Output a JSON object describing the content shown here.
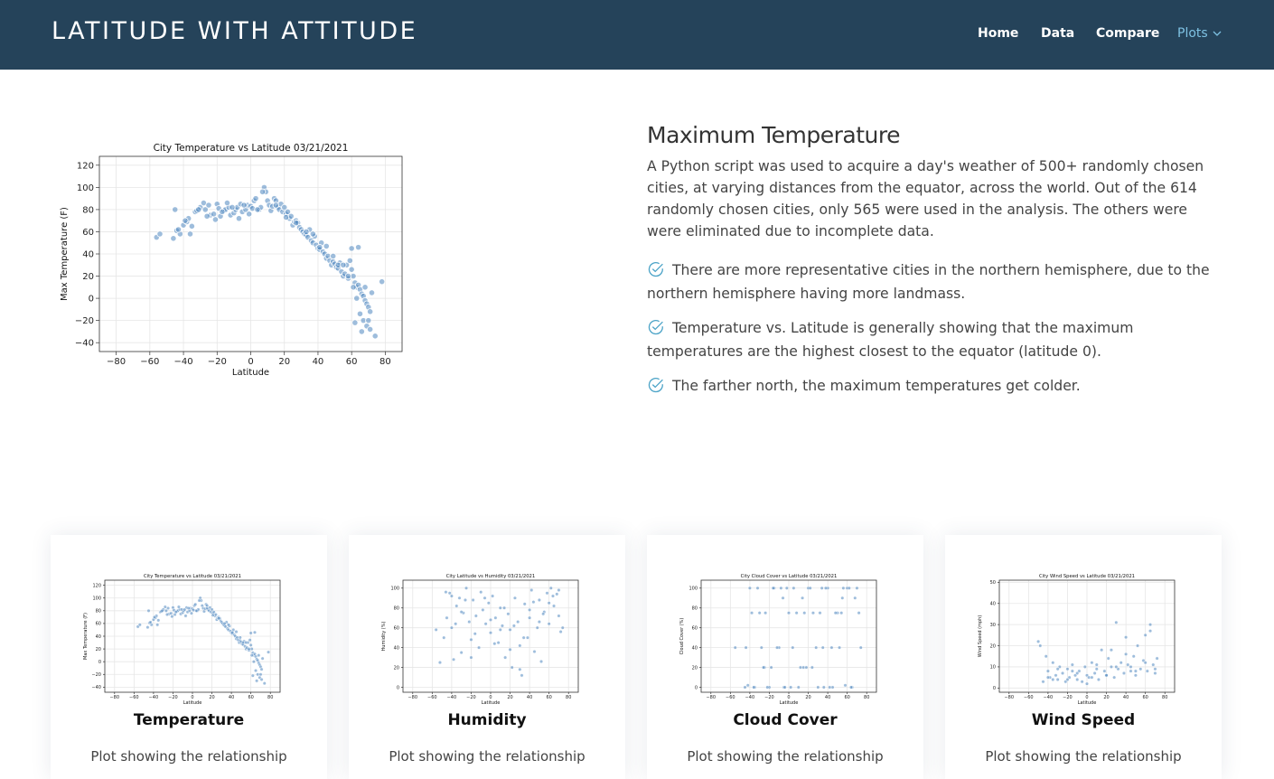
{
  "navbar": {
    "brand": "LATITUDE WITH ATTITUDE",
    "items": [
      "Home",
      "Data",
      "Compare",
      "Plots"
    ],
    "active": "Plots",
    "colors": {
      "background": "#25435a",
      "active": "#7ec2e3"
    }
  },
  "detail": {
    "title": "Maximum Temperature",
    "description": "A Python script was used to acquire a day's weather of 500+ randomly chosen cities, at varying distances from the equator, across the world. Out of the 614 randomly chosen cities, only 565 were used in the analysis. The others were were eliminated due to incomplete data.",
    "bullets": [
      "There are more representative cities in the northern hemisphere, due to the northern hemisphere having more landmass.",
      "Temperature vs. Latitude is generally showing that the maximum temperatures are the highest closest to the equator (latitude 0).",
      "The farther north, the maximum temperatures get colder."
    ],
    "bullet_icon": "check-circle-icon"
  },
  "cards": [
    {
      "title": "Temperature",
      "text": "Plot showing the relationship"
    },
    {
      "title": "Humidity",
      "text": "Plot showing the relationship"
    },
    {
      "title": "Cloud Cover",
      "text": "Plot showing the relationship"
    },
    {
      "title": "Wind Speed",
      "text": "Plot showing the relationship"
    }
  ],
  "chart_data": [
    {
      "type": "scatter",
      "title": "City Temperature vs Latitude 03/21/2021",
      "xlabel": "Latitude",
      "ylabel": "Max Temperature (F)",
      "xlim": [
        -90,
        90
      ],
      "ylim": [
        -48,
        128
      ],
      "xticks": [
        -80,
        -60,
        -40,
        -20,
        0,
        20,
        40,
        60,
        80
      ],
      "yticks": [
        120,
        100,
        80,
        60,
        40,
        20,
        0,
        -20,
        -40
      ],
      "grid": true,
      "color": "#4f86c0",
      "x": [
        -56,
        -54,
        -46,
        -45,
        -44,
        -42,
        -40,
        -38,
        -37,
        -35,
        -33,
        -32,
        -30,
        -28,
        -27,
        -25,
        -24,
        -22,
        -20,
        -19,
        -18,
        -16,
        -15,
        -13,
        -12,
        -10,
        -9,
        -8,
        -6,
        -5,
        -3,
        -2,
        0,
        1,
        2,
        3,
        5,
        6,
        8,
        9,
        10,
        11,
        12,
        13,
        14,
        15,
        16,
        17,
        18,
        19,
        20,
        21,
        22,
        23,
        24,
        25,
        26,
        27,
        28,
        29,
        30,
        31,
        32,
        33,
        34,
        35,
        36,
        37,
        38,
        39,
        40,
        41,
        42,
        43,
        44,
        45,
        46,
        47,
        48,
        49,
        50,
        51,
        52,
        53,
        54,
        55,
        56,
        57,
        58,
        59,
        60,
        61,
        62,
        63,
        64,
        65,
        66,
        67,
        68,
        69,
        70,
        71,
        72,
        78,
        -43,
        -39,
        -36,
        -31,
        -26,
        -21,
        -17,
        -14,
        -11,
        -7,
        -4,
        -1,
        4,
        7,
        15,
        21,
        27,
        33,
        37,
        41,
        45,
        49,
        52,
        55,
        58,
        61,
        63,
        65,
        67,
        69,
        71,
        74,
        60,
        62,
        64,
        66,
        68,
        70
      ],
      "y": [
        55,
        58,
        54,
        80,
        61,
        58,
        66,
        69,
        72,
        65,
        78,
        79,
        82,
        86,
        80,
        84,
        75,
        76,
        85,
        81,
        74,
        79,
        80,
        82,
        75,
        77,
        80,
        82,
        85,
        78,
        80,
        84,
        83,
        81,
        88,
        90,
        80,
        82,
        100,
        96,
        88,
        84,
        79,
        83,
        90,
        88,
        82,
        80,
        85,
        78,
        82,
        76,
        78,
        72,
        74,
        66,
        69,
        70,
        68,
        64,
        62,
        60,
        58,
        57,
        55,
        62,
        52,
        50,
        56,
        48,
        45,
        44,
        50,
        42,
        40,
        36,
        38,
        34,
        30,
        33,
        31,
        28,
        27,
        32,
        24,
        20,
        22,
        30,
        18,
        34,
        26,
        20,
        14,
        10,
        12,
        8,
        4,
        2,
        -2,
        -5,
        -8,
        -12,
        5,
        15,
        62,
        70,
        58,
        80,
        74,
        71,
        78,
        86,
        82,
        72,
        84,
        76,
        80,
        96,
        84,
        73,
        68,
        60,
        58,
        46,
        47,
        38,
        30,
        30,
        20,
        10,
        0,
        -14,
        -20,
        -25,
        -28,
        -34,
        45,
        -22,
        46,
        -30,
        10,
        -20
      ]
    },
    {
      "type": "scatter",
      "title": "City Latitude vs Humidity 03/21/2021",
      "xlabel": "Latitude",
      "ylabel": "Humidity (%)",
      "xlim": [
        -90,
        90
      ],
      "ylim": [
        -5,
        108
      ],
      "xticks": [
        -80,
        -60,
        -40,
        -20,
        0,
        20,
        40,
        60,
        80
      ],
      "yticks": [
        100,
        80,
        60,
        40,
        20,
        0
      ],
      "grid": true,
      "color": "#4f86c0",
      "x": [
        -56,
        -52,
        -48,
        -45,
        -42,
        -40,
        -38,
        -35,
        -32,
        -30,
        -28,
        -25,
        -22,
        -20,
        -18,
        -15,
        -12,
        -10,
        -8,
        -5,
        -2,
        0,
        2,
        5,
        8,
        10,
        12,
        15,
        18,
        20,
        22,
        25,
        28,
        30,
        32,
        35,
        38,
        40,
        42,
        45,
        48,
        50,
        52,
        55,
        58,
        60,
        62,
        65,
        68,
        70,
        72,
        -46,
        -36,
        -26,
        -16,
        -6,
        4,
        14,
        24,
        34,
        44,
        54,
        64,
        74,
        -40,
        -20,
        0,
        20,
        40,
        60,
        -30,
        10,
        30,
        50,
        70
      ],
      "y": [
        58,
        25,
        50,
        70,
        95,
        60,
        28,
        82,
        90,
        35,
        75,
        100,
        66,
        48,
        88,
        72,
        40,
        96,
        78,
        64,
        85,
        55,
        92,
        70,
        45,
        80,
        62,
        30,
        74,
        58,
        20,
        90,
        66,
        42,
        12,
        84,
        50,
        70,
        98,
        36,
        60,
        88,
        26,
        76,
        95,
        64,
        100,
        82,
        94,
        72,
        56,
        96,
        64,
        88,
        54,
        90,
        44,
        80,
        62,
        50,
        86,
        74,
        92,
        60,
        92,
        30,
        68,
        38,
        78,
        85,
        76,
        58,
        18,
        66,
        98
      ]
    },
    {
      "type": "scatter",
      "title": "City Cloud Cover vs Latitude 03/21/2021",
      "xlabel": "Latitude",
      "ylabel": "Cloud Cover (%)",
      "xlim": [
        -90,
        90
      ],
      "ylim": [
        -5,
        108
      ],
      "xticks": [
        -80,
        -60,
        -40,
        -20,
        0,
        20,
        40,
        60,
        80
      ],
      "yticks": [
        100,
        80,
        60,
        40,
        20,
        0
      ],
      "grid": true,
      "color": "#4f86c0",
      "x": [
        -55,
        -45,
        -40,
        -35,
        -30,
        -25,
        -20,
        -15,
        -10,
        -5,
        0,
        5,
        10,
        15,
        20,
        25,
        30,
        35,
        40,
        45,
        50,
        55,
        60,
        65,
        70,
        -42,
        -32,
        -22,
        -12,
        -2,
        8,
        18,
        28,
        38,
        48,
        58,
        68,
        -38,
        -28,
        -18,
        -8,
        2,
        12,
        22,
        32,
        42,
        52,
        62,
        72,
        -44,
        -24,
        -4,
        16,
        36,
        56,
        -36,
        -16,
        4,
        24,
        44,
        64,
        -26,
        -6,
        14,
        34,
        54,
        74
      ],
      "y": [
        40,
        0,
        100,
        0,
        75,
        20,
        0,
        100,
        40,
        0,
        75,
        100,
        0,
        20,
        100,
        75,
        0,
        40,
        100,
        0,
        75,
        90,
        100,
        0,
        100,
        2,
        100,
        0,
        40,
        100,
        75,
        20,
        40,
        100,
        75,
        2,
        90,
        75,
        40,
        20,
        100,
        0,
        20,
        100,
        75,
        0,
        40,
        100,
        75,
        40,
        75,
        0,
        75,
        0,
        100,
        0,
        100,
        40,
        20,
        40,
        0,
        20,
        90,
        90,
        100,
        75,
        40
      ]
    },
    {
      "type": "scatter",
      "title": "City Wind Speed vs Latitude 03/21/2021",
      "xlabel": "Latitude",
      "ylabel": "Wind Speed (mph)",
      "xlim": [
        -90,
        90
      ],
      "ylim": [
        -2,
        51
      ],
      "xticks": [
        -80,
        -60,
        -40,
        -20,
        0,
        20,
        40,
        60,
        80
      ],
      "yticks": [
        50,
        40,
        30,
        20,
        10,
        0
      ],
      "grid": true,
      "color": "#4f86c0",
      "x": [
        -50,
        -48,
        -45,
        -42,
        -40,
        -38,
        -35,
        -32,
        -30,
        -28,
        -25,
        -22,
        -20,
        -18,
        -15,
        -12,
        -10,
        -8,
        -5,
        -2,
        0,
        2,
        5,
        8,
        10,
        12,
        15,
        18,
        20,
        22,
        25,
        28,
        30,
        32,
        35,
        38,
        40,
        42,
        45,
        48,
        50,
        52,
        55,
        58,
        60,
        62,
        65,
        68,
        70,
        72,
        -40,
        -30,
        -20,
        -10,
        0,
        10,
        20,
        30,
        40,
        50,
        60,
        70,
        -35,
        -15,
        5,
        25,
        45,
        65
      ],
      "y": [
        22,
        20,
        3,
        15,
        8,
        5,
        12,
        6,
        4,
        10,
        7,
        3,
        9,
        5,
        11,
        6,
        4,
        8,
        3,
        10,
        6,
        5,
        12,
        7,
        9,
        4,
        18,
        8,
        6,
        14,
        10,
        5,
        31,
        9,
        12,
        7,
        24,
        11,
        8,
        15,
        6,
        20,
        9,
        13,
        25,
        8,
        30,
        11,
        7,
        14,
        5,
        9,
        4,
        7,
        2,
        11,
        6,
        10,
        16,
        8,
        12,
        9,
        4,
        8,
        5,
        18,
        10,
        27
      ]
    }
  ]
}
